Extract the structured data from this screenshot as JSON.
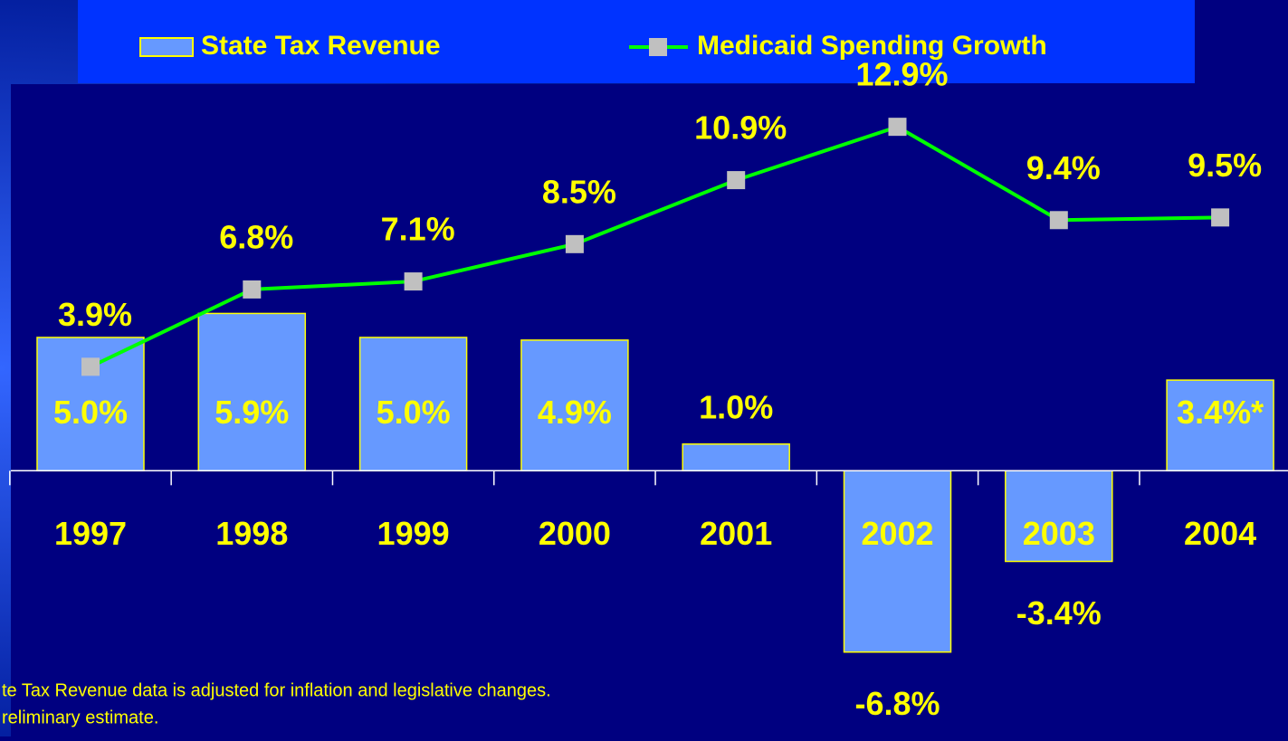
{
  "chart_data": {
    "type": "bar",
    "categories": [
      "1997",
      "1998",
      "1999",
      "2000",
      "2001",
      "2002",
      "2003",
      "2004"
    ],
    "series": [
      {
        "name": "State Tax Revenue",
        "type": "bar",
        "color": "#6699ff",
        "edge_color": "#ffff00",
        "values": [
          5.0,
          5.9,
          5.0,
          4.9,
          1.0,
          -6.8,
          -3.4,
          3.4
        ],
        "value_labels": [
          "5.0%",
          "5.9%",
          "5.0%",
          "4.9%",
          "1.0%",
          "-6.8%",
          "-3.4%",
          "3.4%*"
        ]
      },
      {
        "name": "Medicaid Spending Growth",
        "type": "line",
        "color": "#00ff00",
        "marker_color": "#c0c0c0",
        "values": [
          3.9,
          6.8,
          7.1,
          8.5,
          10.9,
          12.9,
          9.4,
          9.5
        ],
        "value_labels": [
          "3.9%",
          "6.8%",
          "7.1%",
          "8.5%",
          "10.9%",
          "12.9%",
          "9.4%",
          "9.5%"
        ]
      }
    ],
    "ylim": [
      -10,
      14.5
    ],
    "notes": [
      "te Tax Revenue data is adjusted for inflation and legislative changes.",
      "reliminary estimate."
    ]
  }
}
